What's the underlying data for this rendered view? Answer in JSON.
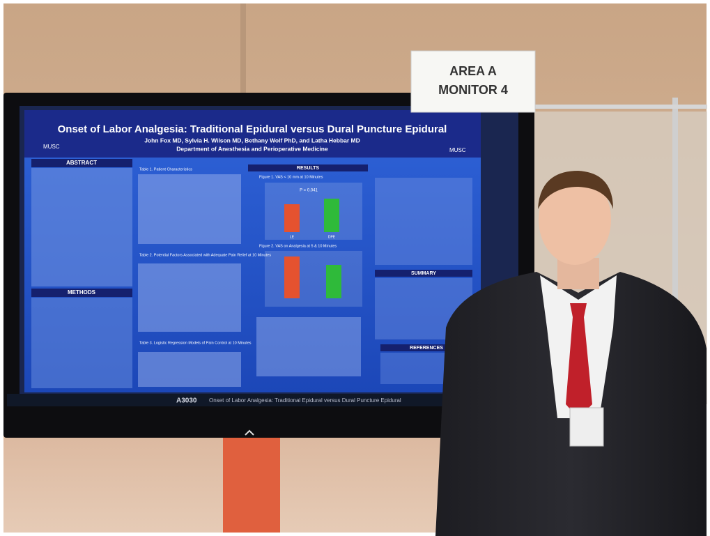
{
  "sign": {
    "line1": "AREA A",
    "line2": "MONITOR 4"
  },
  "poster": {
    "title": "Onset of Labor Analgesia: Traditional Epidural versus Dural Puncture Epidural",
    "authors": "John Fox MD, Sylvia H. Wilson MD, Bethany Wolf PhD, and Latha Hebbar MD",
    "department": "Department of Anesthesia and Perioperative Medicine",
    "logo": "MUSC",
    "sections": {
      "abstract": "ABSTRACT",
      "methods": "METHODS",
      "results": "RESULTS",
      "summary": "SUMMARY",
      "references": "REFERENCES"
    },
    "table1": "Table 1. Patient Characteristics",
    "table2": "Table 2. Potential Factors Associated with Adequate Pain Relief at 10 Minutes",
    "table3": "Table 3. Logistic Regression Models of Pain Control at 10 Minutes",
    "figure1": "Figure 1. VAS < 10 mm at 10 Minutes",
    "figure2": "Figure 2. VAS on Analgesia at 5 & 10 Minutes",
    "p_value": "P = 0.041",
    "bar_labels": [
      "LE",
      "DPE"
    ]
  },
  "screen_bar": {
    "code": "A3030",
    "caption": "Onset of Labor Analgesia: Traditional Epidural versus Dural Puncture Epidural"
  }
}
